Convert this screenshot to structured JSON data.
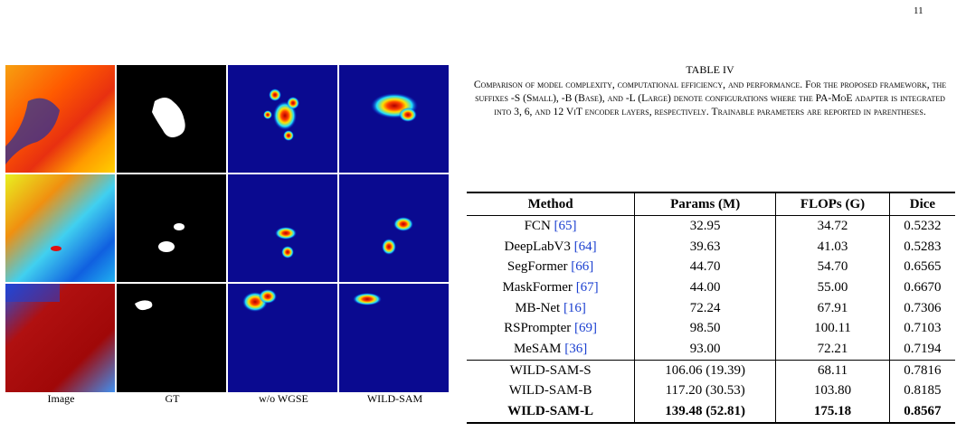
{
  "page_number": "11",
  "figure": {
    "labels": [
      "Image",
      "GT",
      "w/o WGSE",
      "WILD-SAM"
    ]
  },
  "table": {
    "label": "TABLE IV",
    "caption": "Comparison of model complexity, computational efficiency, and performance. For the proposed framework, the suffixes -S (Small), -B (Base), and -L (Large) denote configurations where the PA-MoE adapter is integrated into 3, 6, and 12 ViT encoder layers, respectively. Trainable parameters are reported in parentheses.",
    "columns": [
      "Method",
      "Params (M)",
      "FLOPs (G)",
      "Dice"
    ],
    "rows": [
      {
        "method": "FCN",
        "ref": "[65]",
        "cells": [
          "32.95",
          "34.72",
          "0.5232"
        ]
      },
      {
        "method": "DeepLabV3",
        "ref": "[64]",
        "cells": [
          "39.63",
          "41.03",
          "0.5283"
        ]
      },
      {
        "method": "SegFormer",
        "ref": "[66]",
        "cells": [
          "44.70",
          "54.70",
          "0.6565"
        ]
      },
      {
        "method": "MaskFormer",
        "ref": "[67]",
        "cells": [
          "44.00",
          "55.00",
          "0.6670"
        ]
      },
      {
        "method": "MB-Net",
        "ref": "[16]",
        "cells": [
          "72.24",
          "67.91",
          "0.7306"
        ]
      },
      {
        "method": "RSPrompter",
        "ref": "[69]",
        "cells": [
          "98.50",
          "100.11",
          "0.7103"
        ]
      },
      {
        "method": "MeSAM",
        "ref": "[36]",
        "cells": [
          "93.00",
          "72.21",
          "0.7194"
        ]
      },
      {
        "method": "WILD-SAM-S",
        "cells": [
          "106.06 (19.39)",
          "68.11",
          "0.7816"
        ]
      },
      {
        "method": "WILD-SAM-B",
        "cells": [
          "117.20 (30.53)",
          "103.80",
          "0.8185"
        ]
      },
      {
        "method": "WILD-SAM-L",
        "cells": [
          "139.48 (52.81)",
          "175.18",
          "0.8567"
        ]
      }
    ]
  }
}
